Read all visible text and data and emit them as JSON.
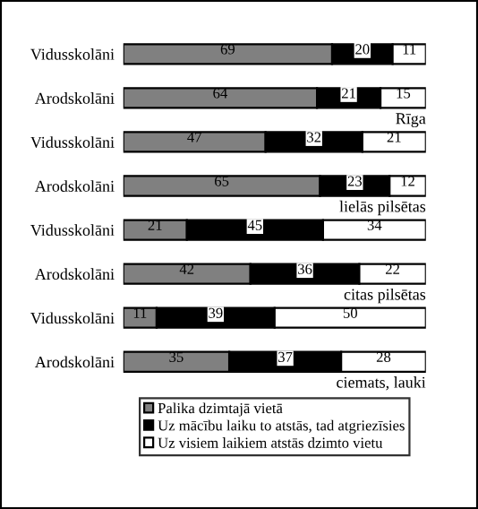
{
  "chart_data": {
    "type": "bar",
    "orientation": "horizontal",
    "stacked": true,
    "data_labels": true,
    "tick_labels": "y",
    "xlim": [
      0,
      100
    ],
    "grid": false,
    "legend": "bottom",
    "categories": [
      "Vidusskolāni",
      "Arodskolāni",
      "Vidusskolāni",
      "Arodskolāni",
      "Vidusskolāni",
      "Arodskolāni",
      "Vidusskolāni",
      "Arodskolāni"
    ],
    "series": [
      {
        "name": "Palika dzimtajā vietā",
        "color": "#808080",
        "values": [
          69,
          64,
          47,
          65,
          21,
          42,
          11,
          35
        ]
      },
      {
        "name": "Uz mācību laiku to atstās, tad atgriezīsies",
        "color": "#000000",
        "values": [
          20,
          21,
          32,
          23,
          45,
          36,
          39,
          37
        ]
      },
      {
        "name": "Uz visiem laikiem atstās dzimto vietu",
        "color": "#ffffff",
        "values": [
          11,
          15,
          21,
          12,
          34,
          22,
          50,
          28
        ]
      }
    ],
    "annotations": [
      "Rīga",
      "lielās pilsētas",
      "citas pilsētas",
      "ciemats, lauki"
    ]
  }
}
